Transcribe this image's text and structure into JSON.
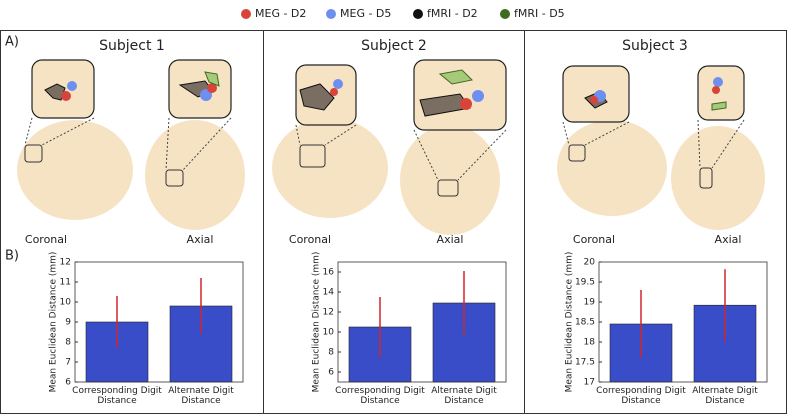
{
  "legend": [
    {
      "name": "MEG - D2",
      "color": "#d8443a"
    },
    {
      "name": "MEG - D5",
      "color": "#6f8ff0"
    },
    {
      "name": "fMRI - D2",
      "color": "#111111"
    },
    {
      "name": "fMRI - D5",
      "color": "#3f6a1f"
    }
  ],
  "panel_labels": [
    "A)",
    "B)"
  ],
  "subjects": [
    {
      "title": "Subject 1",
      "views": [
        "Coronal",
        "Axial"
      ]
    },
    {
      "title": "Subject 2",
      "views": [
        "Coronal",
        "Axial"
      ]
    },
    {
      "title": "Subject 3",
      "views": [
        "Coronal",
        "Axial"
      ]
    }
  ],
  "chart_data": [
    {
      "type": "bar",
      "ylabel": "Mean Euclidean Distance (mm)",
      "categories": [
        "Corresponding Digit Distance",
        "Alternate Digit Distance"
      ],
      "values": [
        9.0,
        9.8
      ],
      "errors": [
        1.3,
        1.4
      ],
      "color": "#3a4dc8",
      "error_color": "#d0262a",
      "ylim": [
        6,
        12
      ],
      "yticks": [
        6,
        7,
        8,
        9,
        10,
        11,
        12
      ]
    },
    {
      "type": "bar",
      "ylabel": "Mean Euclidean Distance (mm)",
      "categories": [
        "Corresponding Digit Distance",
        "Alternate Digit Distance"
      ],
      "values": [
        10.5,
        12.9
      ],
      "errors": [
        3.0,
        3.2
      ],
      "color": "#3a4dc8",
      "error_color": "#d0262a",
      "ylim": [
        5,
        17
      ],
      "yticks": [
        6,
        8,
        10,
        12,
        14,
        16
      ]
    },
    {
      "type": "bar",
      "ylabel": "Mean Euclidean Distance (mm)",
      "categories": [
        "Corresponding Digit Distance",
        "Alternate Digit Distance"
      ],
      "values": [
        18.45,
        18.92
      ],
      "errors": [
        0.85,
        0.9
      ],
      "color": "#3a4dc8",
      "error_color": "#d0262a",
      "ylim": [
        17,
        20
      ],
      "yticks": [
        17,
        17.5,
        18,
        18.5,
        19,
        19.5,
        20
      ]
    }
  ]
}
